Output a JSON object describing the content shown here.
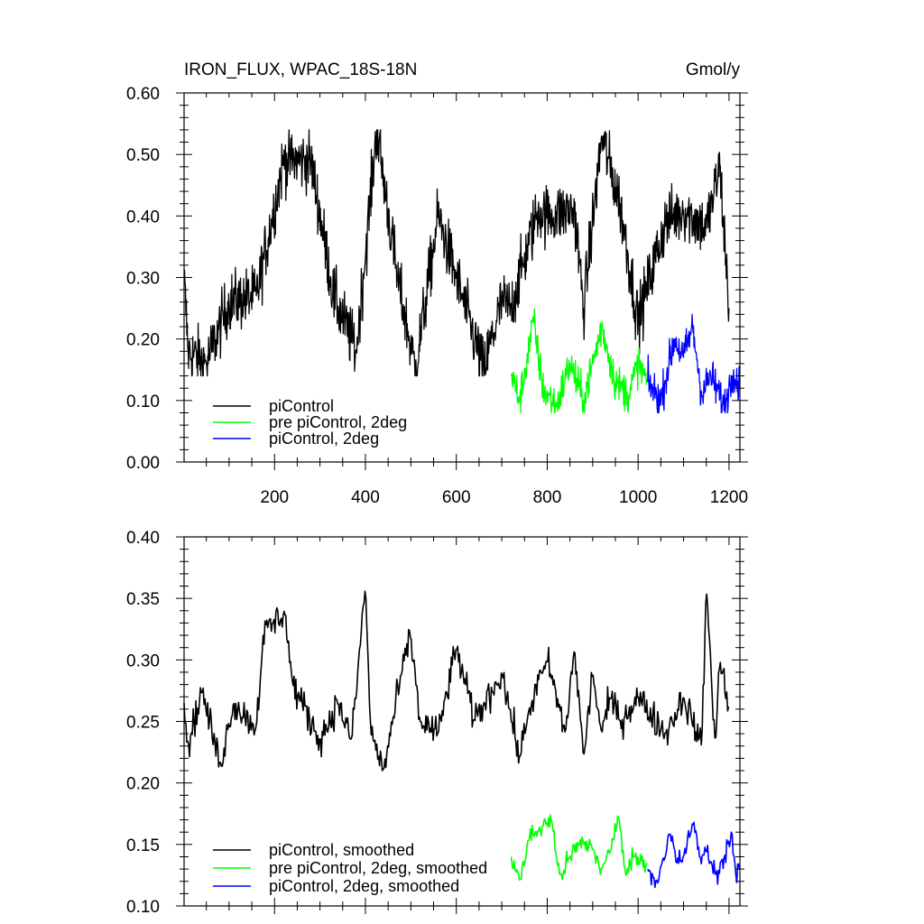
{
  "figure": {
    "title": "IRON_FLUX, WPAC_18S-18N",
    "units": "Gmol/y"
  },
  "chart_data": [
    {
      "type": "line",
      "panel": "top",
      "title": "IRON_FLUX, WPAC_18S-18N",
      "units": "Gmol/y",
      "xlabel": "",
      "ylabel": "",
      "xlim": [
        1,
        1224
      ],
      "ylim": [
        0.0,
        0.6
      ],
      "x_ticks": [
        200,
        400,
        600,
        800,
        1000,
        1200
      ],
      "x_ticklabels": [
        "200",
        "400",
        "600",
        "800",
        "1000",
        "1200"
      ],
      "y_ticks": [
        0.0,
        0.1,
        0.2,
        0.3,
        0.4,
        0.5,
        0.6
      ],
      "y_ticklabels": [
        "0.00",
        "0.10",
        "0.20",
        "0.30",
        "0.40",
        "0.50",
        "0.60"
      ],
      "grid": false,
      "legend_position": "bottom-left",
      "series": [
        {
          "name": "piControl",
          "color": "#000000",
          "x_start": 1,
          "x_end": 1200,
          "mean": 0.255,
          "range": [
            0.14,
            0.54
          ],
          "points": [
            [
              1,
              0.3
            ],
            [
              10,
              0.18
            ],
            [
              50,
              0.16
            ],
            [
              100,
              0.26
            ],
            [
              160,
              0.27
            ],
            [
              220,
              0.49
            ],
            [
              280,
              0.49
            ],
            [
              330,
              0.27
            ],
            [
              380,
              0.18
            ],
            [
              425,
              0.54
            ],
            [
              470,
              0.3
            ],
            [
              510,
              0.15
            ],
            [
              560,
              0.4
            ],
            [
              600,
              0.3
            ],
            [
              660,
              0.15
            ],
            [
              700,
              0.26
            ],
            [
              720,
              0.25
            ],
            [
              780,
              0.41
            ],
            [
              800,
              0.4
            ],
            [
              860,
              0.41
            ],
            [
              880,
              0.25
            ],
            [
              920,
              0.53
            ],
            [
              960,
              0.42
            ],
            [
              1000,
              0.23
            ],
            [
              1060,
              0.39
            ],
            [
              1100,
              0.41
            ],
            [
              1150,
              0.38
            ],
            [
              1180,
              0.48
            ],
            [
              1200,
              0.25
            ]
          ]
        },
        {
          "name": "pre piControl, 2deg",
          "color": "#00ff00",
          "x_start": 721,
          "x_end": 1020,
          "mean": 0.14,
          "range": [
            0.08,
            0.26
          ],
          "points": [
            [
              721,
              0.14
            ],
            [
              740,
              0.1
            ],
            [
              770,
              0.23
            ],
            [
              790,
              0.12
            ],
            [
              820,
              0.09
            ],
            [
              850,
              0.16
            ],
            [
              880,
              0.1
            ],
            [
              920,
              0.22
            ],
            [
              950,
              0.13
            ],
            [
              980,
              0.11
            ],
            [
              1000,
              0.16
            ],
            [
              1020,
              0.13
            ]
          ]
        },
        {
          "name": "piControl, 2deg",
          "color": "#0000ff",
          "x_start": 1021,
          "x_end": 1224,
          "mean": 0.135,
          "range": [
            0.08,
            0.24
          ],
          "points": [
            [
              1021,
              0.13
            ],
            [
              1050,
              0.1
            ],
            [
              1080,
              0.2
            ],
            [
              1100,
              0.17
            ],
            [
              1120,
              0.22
            ],
            [
              1140,
              0.11
            ],
            [
              1160,
              0.14
            ],
            [
              1190,
              0.09
            ],
            [
              1210,
              0.15
            ],
            [
              1224,
              0.12
            ]
          ]
        }
      ]
    },
    {
      "type": "line",
      "panel": "bottom",
      "title": "",
      "xlabel": "",
      "ylabel": "",
      "xlim": [
        1,
        1224
      ],
      "ylim": [
        0.1,
        0.4
      ],
      "x_ticks": [
        200,
        400,
        600,
        800,
        1000,
        1200
      ],
      "y_ticks": [
        0.1,
        0.15,
        0.2,
        0.25,
        0.3,
        0.35,
        0.4
      ],
      "y_ticklabels": [
        "0.10",
        "0.15",
        "0.20",
        "0.25",
        "0.30",
        "0.35",
        "0.40"
      ],
      "grid": false,
      "legend_position": "bottom-left",
      "series": [
        {
          "name": "piControl, smoothed",
          "color": "#000000",
          "x_start": 1,
          "x_end": 1200,
          "mean": 0.26,
          "range": [
            0.21,
            0.36
          ],
          "points": [
            [
              1,
              0.265
            ],
            [
              10,
              0.23
            ],
            [
              40,
              0.275
            ],
            [
              80,
              0.215
            ],
            [
              110,
              0.265
            ],
            [
              160,
              0.245
            ],
            [
              175,
              0.32
            ],
            [
              222,
              0.34
            ],
            [
              240,
              0.28
            ],
            [
              300,
              0.235
            ],
            [
              340,
              0.265
            ],
            [
              370,
              0.235
            ],
            [
              400,
              0.36
            ],
            [
              412,
              0.24
            ],
            [
              440,
              0.21
            ],
            [
              480,
              0.29
            ],
            [
              500,
              0.32
            ],
            [
              520,
              0.25
            ],
            [
              560,
              0.24
            ],
            [
              600,
              0.31
            ],
            [
              640,
              0.25
            ],
            [
              700,
              0.29
            ],
            [
              740,
              0.22
            ],
            [
              760,
              0.26
            ],
            [
              790,
              0.29
            ],
            [
              800,
              0.3
            ],
            [
              840,
              0.24
            ],
            [
              860,
              0.31
            ],
            [
              880,
              0.22
            ],
            [
              900,
              0.29
            ],
            [
              920,
              0.24
            ],
            [
              940,
              0.27
            ],
            [
              960,
              0.25
            ],
            [
              1000,
              0.27
            ],
            [
              1060,
              0.24
            ],
            [
              1100,
              0.27
            ],
            [
              1140,
              0.23
            ],
            [
              1150,
              0.36
            ],
            [
              1170,
              0.23
            ],
            [
              1180,
              0.3
            ],
            [
              1200,
              0.26
            ]
          ]
        },
        {
          "name": "pre piControl, 2deg, smoothed",
          "color": "#00ff00",
          "x_start": 721,
          "x_end": 1020,
          "mean": 0.14,
          "range": [
            0.115,
            0.175
          ],
          "points": [
            [
              721,
              0.14
            ],
            [
              740,
              0.12
            ],
            [
              760,
              0.155
            ],
            [
              790,
              0.165
            ],
            [
              810,
              0.17
            ],
            [
              820,
              0.14
            ],
            [
              830,
              0.125
            ],
            [
              850,
              0.14
            ],
            [
              870,
              0.15
            ],
            [
              895,
              0.15
            ],
            [
              920,
              0.13
            ],
            [
              940,
              0.145
            ],
            [
              956,
              0.175
            ],
            [
              970,
              0.13
            ],
            [
              990,
              0.14
            ],
            [
              1020,
              0.135
            ]
          ]
        },
        {
          "name": "piControl, 2deg, smoothed",
          "color": "#0000ff",
          "x_start": 1021,
          "x_end": 1224,
          "mean": 0.135,
          "range": [
            0.115,
            0.168
          ],
          "points": [
            [
              1021,
              0.13
            ],
            [
              1040,
              0.12
            ],
            [
              1060,
              0.14
            ],
            [
              1070,
              0.16
            ],
            [
              1085,
              0.135
            ],
            [
              1100,
              0.14
            ],
            [
              1120,
              0.168
            ],
            [
              1135,
              0.14
            ],
            [
              1150,
              0.145
            ],
            [
              1170,
              0.125
            ],
            [
              1190,
              0.14
            ],
            [
              1205,
              0.16
            ],
            [
              1215,
              0.125
            ],
            [
              1224,
              0.13
            ]
          ]
        }
      ]
    }
  ]
}
